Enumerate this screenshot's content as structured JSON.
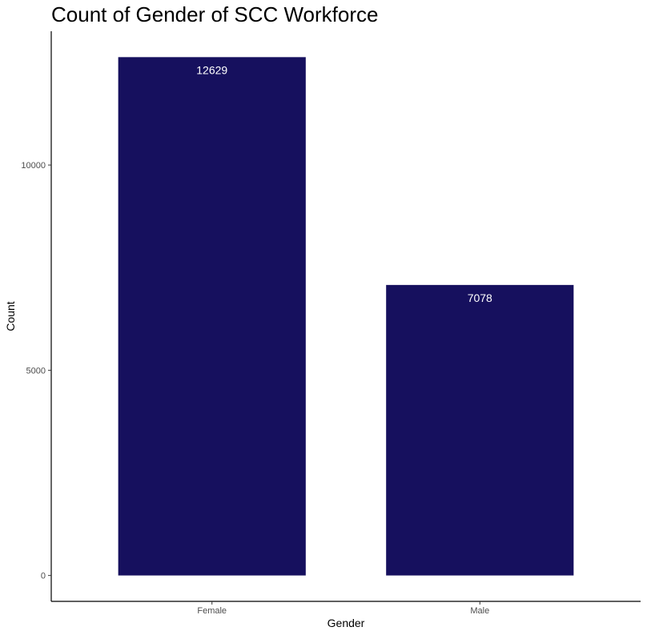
{
  "chart_data": {
    "type": "bar",
    "title": "Count of Gender of SCC Workforce",
    "xlabel": "Gender",
    "ylabel": "Count",
    "categories": [
      "Female",
      "Male"
    ],
    "values": [
      12629,
      7078
    ],
    "data_labels": [
      "12629",
      "7078"
    ],
    "y_ticks": [
      0,
      5000,
      10000
    ],
    "y_tick_labels": [
      "0",
      "5000",
      "10000"
    ],
    "ylim": [
      -631,
      13260
    ],
    "grid": false,
    "legend": "none",
    "bar_color": "#16105e",
    "label_color": "#ffffff"
  }
}
